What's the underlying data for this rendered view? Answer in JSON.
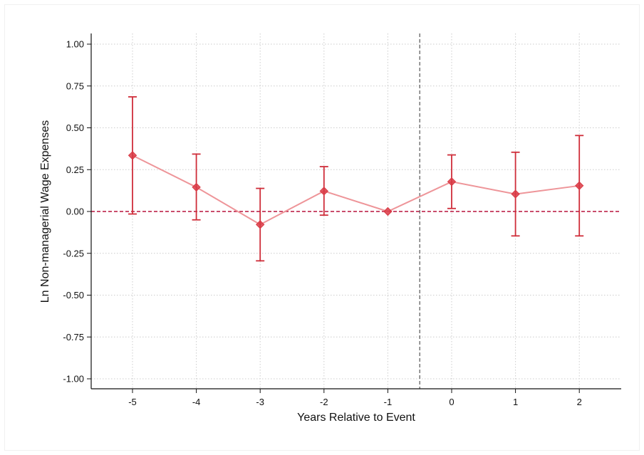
{
  "chart_data": {
    "type": "scatter",
    "title": "",
    "xlabel": "Years Relative to Event",
    "ylabel": "Ln Non-managerial Wage Expenses",
    "xlim": [
      -5.65,
      2.65
    ],
    "ylim": [
      -1.05,
      1.05
    ],
    "x_ticks": [
      -5,
      -4,
      -3,
      -2,
      -1,
      0,
      1,
      2
    ],
    "y_ticks": [
      1.0,
      0.75,
      0.5,
      0.25,
      0.0,
      -0.25,
      -0.5,
      -0.75,
      -1.0
    ],
    "y_tick_labels": [
      "1.00",
      "0.75",
      "0.50",
      "0.25",
      "0.00",
      "-0.25",
      "-0.50",
      "-0.75",
      "-1.00"
    ],
    "x_tick_labels": [
      "-5",
      "-4",
      "-3",
      "-2",
      "-1",
      "0",
      "1",
      "2"
    ],
    "grid": true,
    "reference_lines": {
      "horizontal_zero": 0,
      "vertical_event": -0.5
    },
    "series": [
      {
        "x": [
          -5,
          -4,
          -3,
          -2,
          -1,
          0,
          1,
          2
        ],
        "values": [
          0.335,
          0.145,
          -0.078,
          0.122,
          0.0,
          0.178,
          0.104,
          0.154
        ],
        "ci_lower": [
          -0.015,
          -0.05,
          -0.295,
          -0.022,
          0.0,
          0.018,
          -0.146,
          -0.146
        ],
        "ci_upper": [
          0.685,
          0.343,
          0.138,
          0.268,
          0.0,
          0.338,
          0.354,
          0.454
        ]
      }
    ],
    "colors": {
      "marker": "#d93a45",
      "line": "#ee9599",
      "errorbar": "#cf2e3a",
      "zero_line": "#b8123c",
      "event_line": "#555555",
      "grid": "#cccccc"
    }
  }
}
